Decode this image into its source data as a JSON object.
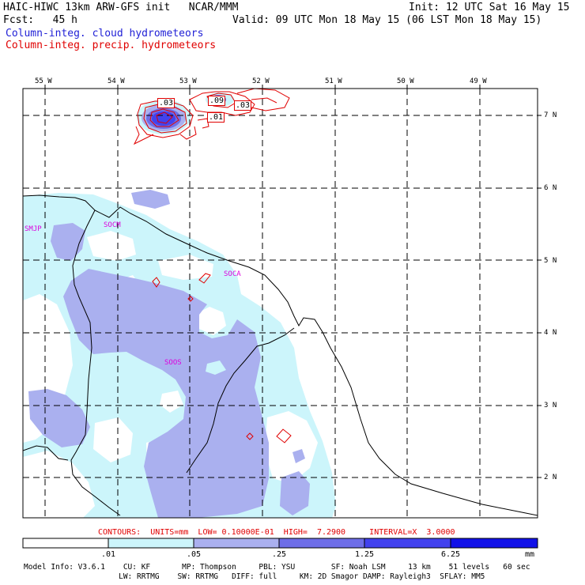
{
  "header": {
    "title": "HAIC-HIWC 13km ARW-GFS init   NCAR/MMM",
    "init": "Init: 12 UTC Sat 16 May 15",
    "fcst": "Fcst:   45 h",
    "valid": "Valid: 09 UTC Mon 18 May 15 (06 LST Mon 18 May 15)",
    "field1": "Column-integ. cloud hydrometeors",
    "field2": "Column-integ. precip. hydrometeors"
  },
  "colors": {
    "field1": "#1f1fd6",
    "field2": "#e00000",
    "station": "#dd00dd",
    "contour": "#e00000",
    "shade_01": "#ccf5fb",
    "shade_05": "#aab0ef",
    "shade_25": "#6e6ee8",
    "shade_125": "#4242ee",
    "shade_625": "#1212e8"
  },
  "longitudes": [
    "55 W",
    "54 W",
    "53 W",
    "52 W",
    "51 W",
    "50 W",
    "49 W"
  ],
  "latitudes": [
    "7 N",
    "6 N",
    "5 N",
    "4 N",
    "3 N",
    "2 N"
  ],
  "stations": [
    "SMJP",
    "SOCM",
    "SOCA",
    "SOOS"
  ],
  "contour_labels": [
    ".03",
    ".09",
    ".03",
    ".01"
  ],
  "contour_info": "CONTOURS:  UNITS=mm  LOW= 0.10000E-01  HIGH=  7.2900     INTERVAL=X  3.0000",
  "colorbar": {
    "ticks": [
      ".01",
      ".05",
      ".25",
      "1.25",
      "6.25"
    ],
    "unit": "mm"
  },
  "model_info": {
    "line1": "Model Info: V3.6.1    CU: KF       MP: Thompson     PBL: YSU        SF: Noah LSM     13 km    51 levels   60 sec",
    "line2": "                     LW: RRTMG    SW: RRTMG   DIFF: full     KM: 2D Smagor DAMP: Rayleigh3  SFLAY: MM5"
  }
}
